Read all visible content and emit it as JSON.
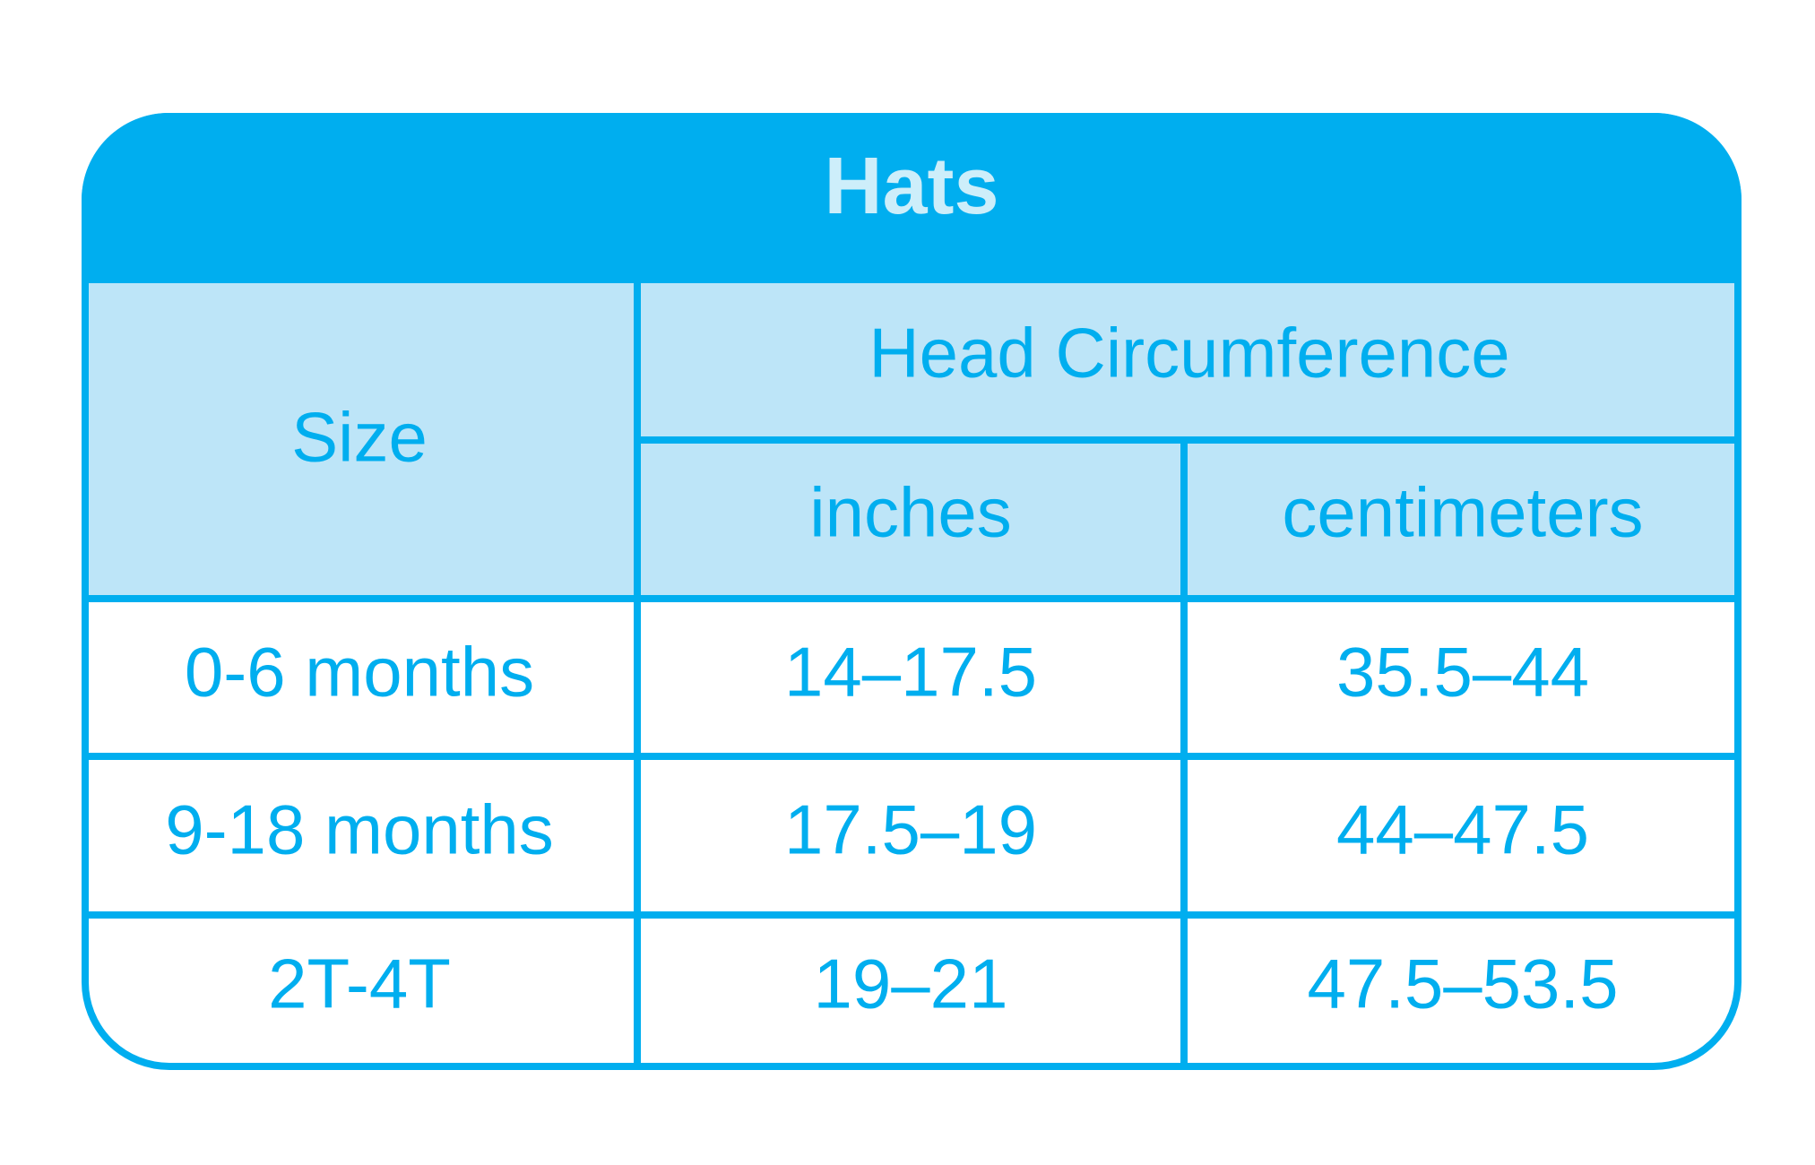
{
  "header": {
    "title": "Hats"
  },
  "table": {
    "header": {
      "size": "Size",
      "group": "Head Circumference",
      "columns": [
        "inches",
        "centimeters"
      ]
    },
    "rows": [
      [
        "0-6 months",
        "14–17.5",
        "35.5–44"
      ],
      [
        "9-18 months",
        "17.5–19",
        "44–47.5"
      ],
      [
        "2T-4T",
        "19–21",
        "47.5–53.5"
      ]
    ]
  }
}
